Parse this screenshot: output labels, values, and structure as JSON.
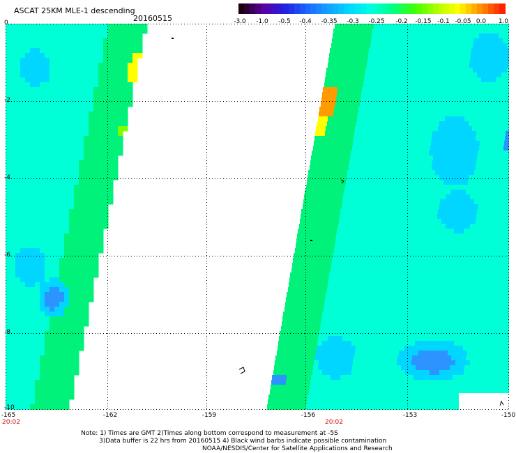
{
  "header": {
    "title": "ASCAT 25KM MLE-1 descending",
    "date": "20160515"
  },
  "colorbar": {
    "labels": [
      "-3.0",
      "-1.0",
      "-0.5",
      "-0.4",
      "-0.35",
      "-0.3",
      "-0.25",
      "-0.2",
      "-0.15",
      "-0.1",
      "-0.05",
      "0.0",
      "1.0"
    ],
    "colors": [
      "#1a0010",
      "#5a00a0",
      "#2020e0",
      "#1e64ff",
      "#14a0ff",
      "#00d8ff",
      "#00ffe0",
      "#00ff80",
      "#40ff00",
      "#b0ff00",
      "#ffff00",
      "#ff9000",
      "#ff2000"
    ]
  },
  "map": {
    "lat_ticks": [
      "0",
      "-2",
      "-4",
      "-6",
      "-8",
      "-10"
    ],
    "lon_ticks": [
      "-165",
      "-162",
      "-159",
      "-156",
      "-153",
      "-150"
    ],
    "times": [
      "20:02",
      "20:02"
    ],
    "colors": {
      "green": "#00f27a",
      "cyan": "#00ffd6",
      "light_blue": "#00d6ff",
      "blue": "#2d93ff",
      "lime": "#7dff00",
      "yellow": "#ffff00",
      "orange": "#ff9a00"
    }
  },
  "notes": {
    "line1": "Note: 1) Times are GMT 2)Times along bottom correspond to measurement at -5S",
    "line2": "3)Data buffer is 22 hrs from 20160515 4) Black wind barbs indicate possible contamination",
    "line3": "NOAA/NESDIS/Center for Satellite Applications and Research"
  }
}
